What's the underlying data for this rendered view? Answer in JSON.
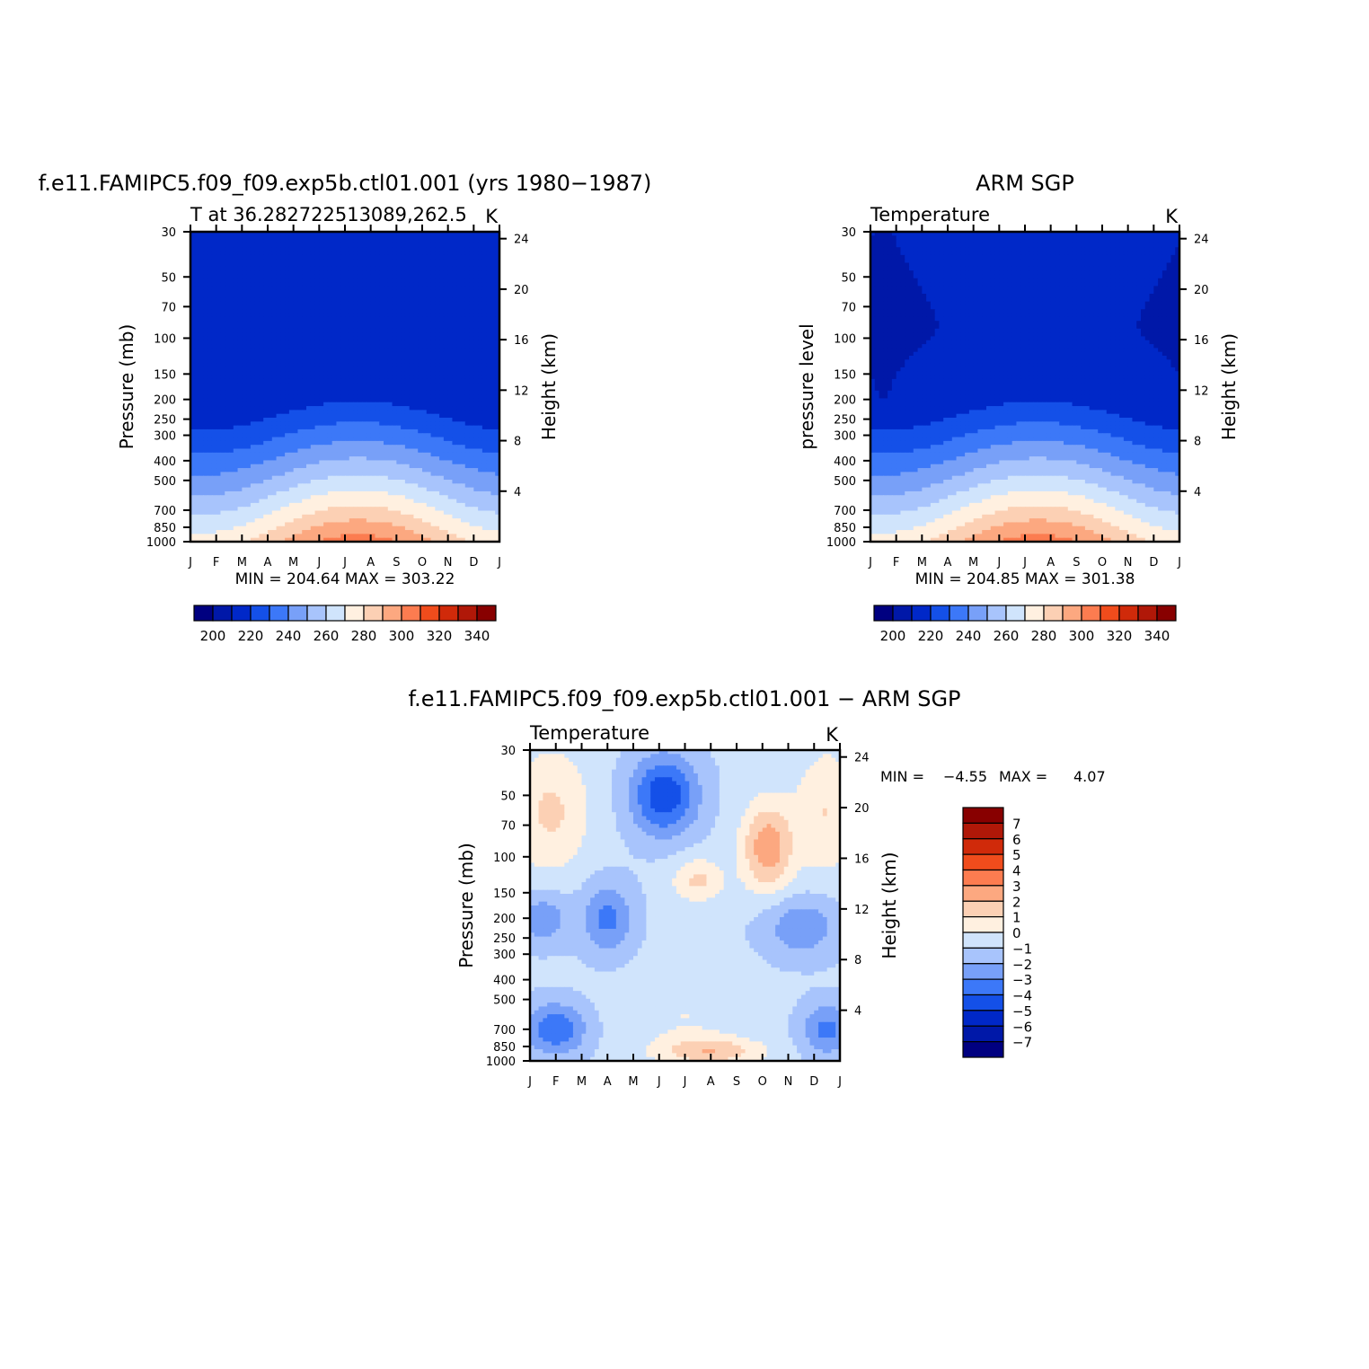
{
  "palette": {
    "colors": [
      "#000080",
      "#0018a8",
      "#0028c8",
      "#1450e8",
      "#3c78f8",
      "#78a0f8",
      "#a8c4fc",
      "#d0e4fc",
      "#fff0e0",
      "#fcd0b4",
      "#fca880",
      "#fc7c50",
      "#f04c1c",
      "#d02a0a",
      "#b01808",
      "#880000"
    ]
  },
  "chart_data": [
    {
      "type": "heatmap",
      "title": "f.e11.FAMIPC5.f09_f09.exp5b.ctl01.001 (yrs 1980−1987)",
      "subtitle_left": "T at 36.282722513089,262.5",
      "subtitle_right": "K",
      "ylabel": "Pressure (mb)",
      "ylabel_right": "Height (km)",
      "x_ticks": [
        "J",
        "F",
        "M",
        "A",
        "M",
        "J",
        "J",
        "A",
        "S",
        "O",
        "N",
        "D",
        "J"
      ],
      "y_ticks": [
        "30",
        "50",
        "70",
        "100",
        "150",
        "200",
        "250",
        "300",
        "400",
        "500",
        "700",
        "850",
        "1000"
      ],
      "y_ticks_right": [
        "24",
        "20",
        "16",
        "12",
        "8",
        "4"
      ],
      "stats": "MIN = 204.64 MAX = 303.22",
      "min": 204.64,
      "max": 303.22,
      "colorbar_labels": [
        "200",
        "220",
        "240",
        "260",
        "280",
        "300",
        "320",
        "340"
      ],
      "colorbar_range": [
        190,
        350
      ]
    },
    {
      "type": "heatmap",
      "title": "ARM SGP",
      "subtitle_left": "Temperature",
      "subtitle_right": "K",
      "ylabel": "pressure level",
      "ylabel_right": "Height (km)",
      "x_ticks": [
        "J",
        "F",
        "M",
        "A",
        "M",
        "J",
        "J",
        "A",
        "S",
        "O",
        "N",
        "D",
        "J"
      ],
      "y_ticks": [
        "30",
        "50",
        "70",
        "100",
        "150",
        "200",
        "250",
        "300",
        "400",
        "500",
        "700",
        "850",
        "1000"
      ],
      "y_ticks_right": [
        "24",
        "20",
        "16",
        "12",
        "8",
        "4"
      ],
      "stats": "MIN = 204.85 MAX = 301.38",
      "min": 204.85,
      "max": 301.38,
      "colorbar_labels": [
        "200",
        "220",
        "240",
        "260",
        "280",
        "300",
        "320",
        "340"
      ],
      "colorbar_range": [
        190,
        350
      ]
    },
    {
      "type": "heatmap",
      "title": "f.e11.FAMIPC5.f09_f09.exp5b.ctl01.001 − ARM SGP",
      "subtitle_left": "Temperature",
      "subtitle_right": "K",
      "ylabel": "Pressure (mb)",
      "ylabel_right": "Height (km)",
      "x_ticks": [
        "J",
        "F",
        "M",
        "A",
        "M",
        "J",
        "J",
        "A",
        "S",
        "O",
        "N",
        "D",
        "J"
      ],
      "y_ticks": [
        "30",
        "50",
        "70",
        "100",
        "150",
        "200",
        "250",
        "300",
        "400",
        "500",
        "700",
        "850",
        "1000"
      ],
      "y_ticks_right": [
        "24",
        "20",
        "16",
        "12",
        "8",
        "4"
      ],
      "stats_min_label": "MIN =",
      "stats_min_value": "−4.55",
      "stats_max_label": "MAX =",
      "stats_max_value": "4.07",
      "min": -4.55,
      "max": 4.07,
      "colorbar_labels": [
        "7",
        "6",
        "5",
        "4",
        "3",
        "2",
        "1",
        "0",
        "−1",
        "−2",
        "−3",
        "−4",
        "−5",
        "−6",
        "−7"
      ],
      "colorbar_range": [
        -8,
        8
      ]
    }
  ]
}
